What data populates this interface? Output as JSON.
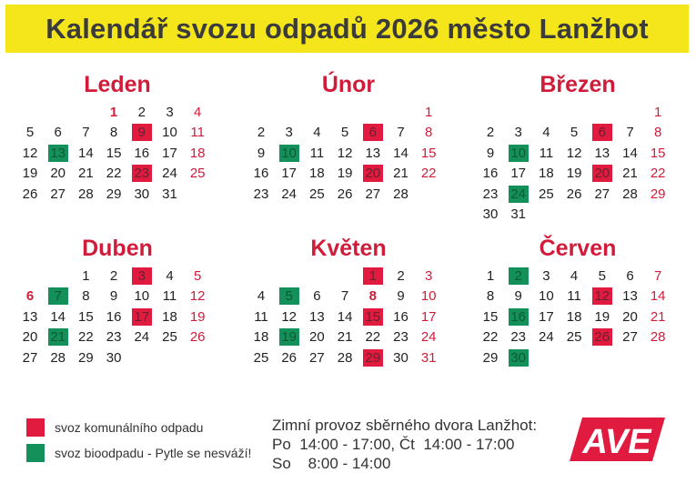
{
  "title": "Kalendář svozu odpadů 2026 město Lanžhot",
  "months": [
    {
      "name": "Leden",
      "start": 3,
      "days": 31,
      "komunal": [
        9,
        23
      ],
      "bio": [
        13
      ],
      "red_text": [
        1,
        4,
        11,
        18,
        25
      ],
      "bold": [
        1
      ]
    },
    {
      "name": "Únor",
      "start": 6,
      "days": 28,
      "komunal": [
        6,
        20
      ],
      "bio": [
        10
      ],
      "red_text": [
        1,
        8,
        15,
        22
      ],
      "bold": []
    },
    {
      "name": "Březen",
      "start": 6,
      "days": 31,
      "komunal": [
        6,
        20
      ],
      "bio": [
        10,
        24
      ],
      "red_text": [
        1,
        8,
        15,
        22,
        29
      ],
      "bold": []
    },
    {
      "name": "Duben",
      "start": 2,
      "days": 30,
      "komunal": [
        3,
        17
      ],
      "bio": [
        7,
        21
      ],
      "red_text": [
        5,
        6,
        12,
        19,
        26
      ],
      "bold": [
        6
      ]
    },
    {
      "name": "Květen",
      "start": 4,
      "days": 31,
      "komunal": [
        1,
        15,
        29
      ],
      "bio": [
        5,
        19
      ],
      "red_text": [
        1,
        3,
        8,
        10,
        17,
        24,
        31
      ],
      "bold": [
        8
      ]
    },
    {
      "name": "Červen",
      "start": 0,
      "days": 30,
      "komunal": [
        12,
        26
      ],
      "bio": [
        2,
        16,
        30
      ],
      "red_text": [
        7,
        14,
        21,
        28
      ],
      "bold": []
    }
  ],
  "legend": {
    "komunal": "svoz komunálního odpadu",
    "bio": "svoz bioodpadu - Pytle se nesváží!",
    "colors": {
      "komunal": "#e01b3f",
      "bio": "#14915a",
      "accent": "#d01c3a",
      "title_bg": "#f5e61c"
    }
  },
  "winter": {
    "heading": "Zimní provoz sběrného dvora Lanžhot:",
    "line1": "Po  14:00 - 17:00, Čt  14:00 - 17:00",
    "line2": "So    8:00 - 14:00"
  },
  "logo": {
    "text": "AVE"
  }
}
